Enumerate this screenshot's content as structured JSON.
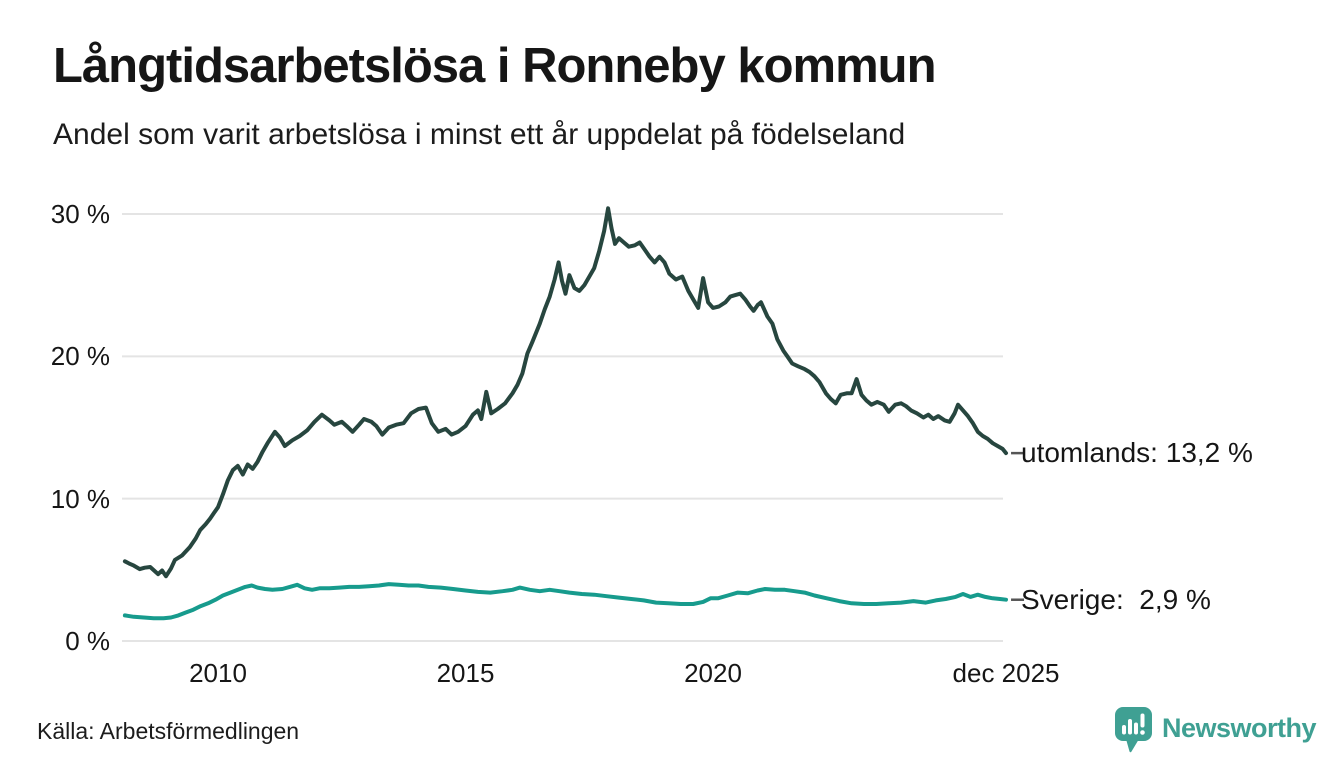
{
  "header": {
    "title": "Långtidsarbetslösa i Ronneby kommun",
    "subtitle": "Andel som varit arbetslösa i minst ett år uppdelat på födelseland"
  },
  "chart_data": {
    "type": "line",
    "title": "Långtidsarbetslösa i Ronneby kommun",
    "subtitle": "Andel som varit arbetslösa i minst ett år uppdelat på födelseland",
    "xlabel": "",
    "ylabel": "",
    "unit": "%",
    "grid": true,
    "legend_position": "right-end-labels",
    "x_range": [
      2008.1,
      2025.95
    ],
    "ylim": [
      0,
      31
    ],
    "y_ticks": [
      {
        "label": "0 %",
        "value": 0
      },
      {
        "label": "10 %",
        "value": 10
      },
      {
        "label": "20 %",
        "value": 20
      },
      {
        "label": "30 %",
        "value": 30
      }
    ],
    "x_ticks": [
      {
        "label": "2010",
        "value": 2010
      },
      {
        "label": "2015",
        "value": 2015
      },
      {
        "label": "2020",
        "value": 2020
      },
      {
        "label": "dec 2025",
        "value": 2025.92
      }
    ],
    "series": [
      {
        "name": "utomlands",
        "end_label": "utomlands: 13,2 %",
        "last_value": "13,2 %",
        "color": "#27463f",
        "points": [
          [
            2008.12,
            5.6
          ],
          [
            2008.2,
            5.45
          ],
          [
            2008.3,
            5.3
          ],
          [
            2008.42,
            5.05
          ],
          [
            2008.52,
            5.15
          ],
          [
            2008.63,
            5.2
          ],
          [
            2008.79,
            4.7
          ],
          [
            2008.87,
            4.95
          ],
          [
            2008.95,
            4.55
          ],
          [
            2009.05,
            5.1
          ],
          [
            2009.13,
            5.7
          ],
          [
            2009.27,
            6.0
          ],
          [
            2009.43,
            6.6
          ],
          [
            2009.55,
            7.2
          ],
          [
            2009.64,
            7.8
          ],
          [
            2009.75,
            8.2
          ],
          [
            2009.84,
            8.6
          ],
          [
            2009.92,
            9.0
          ],
          [
            2010.0,
            9.4
          ],
          [
            2010.1,
            10.3
          ],
          [
            2010.2,
            11.3
          ],
          [
            2010.3,
            12.0
          ],
          [
            2010.4,
            12.3
          ],
          [
            2010.5,
            11.7
          ],
          [
            2010.6,
            12.4
          ],
          [
            2010.7,
            12.1
          ],
          [
            2010.8,
            12.6
          ],
          [
            2010.9,
            13.3
          ],
          [
            2011.0,
            13.9
          ],
          [
            2011.15,
            14.7
          ],
          [
            2011.25,
            14.3
          ],
          [
            2011.35,
            13.7
          ],
          [
            2011.5,
            14.1
          ],
          [
            2011.65,
            14.4
          ],
          [
            2011.8,
            14.8
          ],
          [
            2011.95,
            15.4
          ],
          [
            2012.1,
            15.9
          ],
          [
            2012.25,
            15.5
          ],
          [
            2012.35,
            15.2
          ],
          [
            2012.5,
            15.4
          ],
          [
            2012.6,
            15.1
          ],
          [
            2012.72,
            14.7
          ],
          [
            2012.85,
            15.2
          ],
          [
            2012.95,
            15.6
          ],
          [
            2013.1,
            15.4
          ],
          [
            2013.2,
            15.1
          ],
          [
            2013.32,
            14.5
          ],
          [
            2013.45,
            15.0
          ],
          [
            2013.6,
            15.2
          ],
          [
            2013.75,
            15.3
          ],
          [
            2013.9,
            16.0
          ],
          [
            2014.05,
            16.3
          ],
          [
            2014.2,
            16.4
          ],
          [
            2014.32,
            15.3
          ],
          [
            2014.45,
            14.7
          ],
          [
            2014.6,
            14.9
          ],
          [
            2014.72,
            14.5
          ],
          [
            2014.85,
            14.7
          ],
          [
            2015.0,
            15.1
          ],
          [
            2015.15,
            15.9
          ],
          [
            2015.25,
            16.2
          ],
          [
            2015.32,
            15.6
          ],
          [
            2015.42,
            17.5
          ],
          [
            2015.52,
            16.0
          ],
          [
            2015.65,
            16.3
          ],
          [
            2015.8,
            16.7
          ],
          [
            2015.95,
            17.4
          ],
          [
            2016.05,
            18.0
          ],
          [
            2016.15,
            18.8
          ],
          [
            2016.25,
            20.2
          ],
          [
            2016.35,
            21.0
          ],
          [
            2016.5,
            22.3
          ],
          [
            2016.6,
            23.3
          ],
          [
            2016.7,
            24.2
          ],
          [
            2016.8,
            25.4
          ],
          [
            2016.88,
            26.6
          ],
          [
            2016.95,
            25.3
          ],
          [
            2017.02,
            24.4
          ],
          [
            2017.1,
            25.7
          ],
          [
            2017.2,
            24.8
          ],
          [
            2017.3,
            24.6
          ],
          [
            2017.4,
            25.0
          ],
          [
            2017.5,
            25.6
          ],
          [
            2017.6,
            26.2
          ],
          [
            2017.7,
            27.4
          ],
          [
            2017.8,
            28.8
          ],
          [
            2017.88,
            30.4
          ],
          [
            2017.95,
            29.0
          ],
          [
            2018.02,
            27.9
          ],
          [
            2018.1,
            28.3
          ],
          [
            2018.2,
            28.0
          ],
          [
            2018.3,
            27.7
          ],
          [
            2018.42,
            27.8
          ],
          [
            2018.52,
            28.0
          ],
          [
            2018.62,
            27.5
          ],
          [
            2018.72,
            27.0
          ],
          [
            2018.82,
            26.6
          ],
          [
            2018.92,
            27.0
          ],
          [
            2019.02,
            26.6
          ],
          [
            2019.12,
            25.8
          ],
          [
            2019.25,
            25.4
          ],
          [
            2019.38,
            25.6
          ],
          [
            2019.5,
            24.6
          ],
          [
            2019.6,
            24.0
          ],
          [
            2019.7,
            23.4
          ],
          [
            2019.8,
            25.5
          ],
          [
            2019.9,
            23.8
          ],
          [
            2020.0,
            23.4
          ],
          [
            2020.12,
            23.5
          ],
          [
            2020.25,
            23.8
          ],
          [
            2020.35,
            24.2
          ],
          [
            2020.45,
            24.3
          ],
          [
            2020.55,
            24.4
          ],
          [
            2020.65,
            24.0
          ],
          [
            2020.75,
            23.5
          ],
          [
            2020.82,
            23.2
          ],
          [
            2020.9,
            23.6
          ],
          [
            2020.97,
            23.8
          ],
          [
            2021.1,
            22.8
          ],
          [
            2021.2,
            22.3
          ],
          [
            2021.3,
            21.2
          ],
          [
            2021.42,
            20.4
          ],
          [
            2021.5,
            20.0
          ],
          [
            2021.6,
            19.5
          ],
          [
            2021.72,
            19.3
          ],
          [
            2021.85,
            19.1
          ],
          [
            2021.95,
            18.9
          ],
          [
            2022.05,
            18.6
          ],
          [
            2022.15,
            18.2
          ],
          [
            2022.28,
            17.4
          ],
          [
            2022.38,
            17.0
          ],
          [
            2022.48,
            16.7
          ],
          [
            2022.58,
            17.3
          ],
          [
            2022.7,
            17.4
          ],
          [
            2022.8,
            17.4
          ],
          [
            2022.9,
            18.4
          ],
          [
            2023.0,
            17.3
          ],
          [
            2023.1,
            16.9
          ],
          [
            2023.2,
            16.6
          ],
          [
            2023.32,
            16.8
          ],
          [
            2023.45,
            16.6
          ],
          [
            2023.55,
            16.1
          ],
          [
            2023.68,
            16.6
          ],
          [
            2023.8,
            16.7
          ],
          [
            2023.9,
            16.5
          ],
          [
            2024.0,
            16.2
          ],
          [
            2024.12,
            16.0
          ],
          [
            2024.25,
            15.7
          ],
          [
            2024.35,
            15.9
          ],
          [
            2024.45,
            15.6
          ],
          [
            2024.55,
            15.8
          ],
          [
            2024.68,
            15.5
          ],
          [
            2024.78,
            15.4
          ],
          [
            2024.88,
            16.0
          ],
          [
            2024.95,
            16.6
          ],
          [
            2025.05,
            16.2
          ],
          [
            2025.15,
            15.8
          ],
          [
            2025.25,
            15.3
          ],
          [
            2025.35,
            14.7
          ],
          [
            2025.45,
            14.4
          ],
          [
            2025.55,
            14.2
          ],
          [
            2025.65,
            13.9
          ],
          [
            2025.75,
            13.7
          ],
          [
            2025.85,
            13.5
          ],
          [
            2025.92,
            13.2
          ]
        ]
      },
      {
        "name": "Sverige",
        "end_label": "Sverige:  2,9 %",
        "last_value": "2,9 %",
        "color": "#179b8d",
        "points": [
          [
            2008.12,
            1.8
          ],
          [
            2008.3,
            1.7
          ],
          [
            2008.5,
            1.65
          ],
          [
            2008.7,
            1.6
          ],
          [
            2008.9,
            1.6
          ],
          [
            2009.05,
            1.65
          ],
          [
            2009.2,
            1.8
          ],
          [
            2009.35,
            2.0
          ],
          [
            2009.5,
            2.2
          ],
          [
            2009.65,
            2.45
          ],
          [
            2009.8,
            2.65
          ],
          [
            2009.95,
            2.9
          ],
          [
            2010.1,
            3.2
          ],
          [
            2010.25,
            3.4
          ],
          [
            2010.4,
            3.6
          ],
          [
            2010.55,
            3.8
          ],
          [
            2010.68,
            3.9
          ],
          [
            2010.8,
            3.75
          ],
          [
            2010.95,
            3.65
          ],
          [
            2011.1,
            3.6
          ],
          [
            2011.3,
            3.65
          ],
          [
            2011.45,
            3.8
          ],
          [
            2011.6,
            3.95
          ],
          [
            2011.75,
            3.7
          ],
          [
            2011.9,
            3.6
          ],
          [
            2012.05,
            3.7
          ],
          [
            2012.25,
            3.7
          ],
          [
            2012.45,
            3.75
          ],
          [
            2012.65,
            3.8
          ],
          [
            2012.85,
            3.8
          ],
          [
            2013.05,
            3.85
          ],
          [
            2013.25,
            3.9
          ],
          [
            2013.45,
            4.0
          ],
          [
            2013.65,
            3.95
          ],
          [
            2013.85,
            3.9
          ],
          [
            2014.05,
            3.9
          ],
          [
            2014.25,
            3.8
          ],
          [
            2014.5,
            3.75
          ],
          [
            2014.75,
            3.65
          ],
          [
            2015.0,
            3.55
          ],
          [
            2015.25,
            3.45
          ],
          [
            2015.5,
            3.4
          ],
          [
            2015.75,
            3.5
          ],
          [
            2015.95,
            3.6
          ],
          [
            2016.1,
            3.75
          ],
          [
            2016.3,
            3.6
          ],
          [
            2016.5,
            3.5
          ],
          [
            2016.7,
            3.6
          ],
          [
            2016.9,
            3.5
          ],
          [
            2017.1,
            3.4
          ],
          [
            2017.35,
            3.3
          ],
          [
            2017.6,
            3.25
          ],
          [
            2017.85,
            3.15
          ],
          [
            2018.1,
            3.05
          ],
          [
            2018.35,
            2.95
          ],
          [
            2018.6,
            2.85
          ],
          [
            2018.85,
            2.7
          ],
          [
            2019.1,
            2.65
          ],
          [
            2019.35,
            2.6
          ],
          [
            2019.6,
            2.6
          ],
          [
            2019.8,
            2.75
          ],
          [
            2019.95,
            3.0
          ],
          [
            2020.1,
            3.0
          ],
          [
            2020.3,
            3.2
          ],
          [
            2020.5,
            3.4
          ],
          [
            2020.7,
            3.35
          ],
          [
            2020.9,
            3.55
          ],
          [
            2021.05,
            3.65
          ],
          [
            2021.25,
            3.6
          ],
          [
            2021.45,
            3.6
          ],
          [
            2021.65,
            3.5
          ],
          [
            2021.85,
            3.4
          ],
          [
            2022.05,
            3.2
          ],
          [
            2022.3,
            3.0
          ],
          [
            2022.55,
            2.8
          ],
          [
            2022.8,
            2.65
          ],
          [
            2023.05,
            2.6
          ],
          [
            2023.3,
            2.6
          ],
          [
            2023.55,
            2.65
          ],
          [
            2023.8,
            2.7
          ],
          [
            2024.05,
            2.8
          ],
          [
            2024.3,
            2.7
          ],
          [
            2024.5,
            2.85
          ],
          [
            2024.7,
            2.95
          ],
          [
            2024.9,
            3.1
          ],
          [
            2025.05,
            3.3
          ],
          [
            2025.2,
            3.1
          ],
          [
            2025.35,
            3.25
          ],
          [
            2025.5,
            3.1
          ],
          [
            2025.65,
            3.0
          ],
          [
            2025.8,
            2.95
          ],
          [
            2025.92,
            2.9
          ]
        ]
      }
    ]
  },
  "footer": {
    "source": "Källa: Arbetsförmedlingen",
    "logo_text": "Newsworthy"
  },
  "colors": {
    "series_utomlands": "#27463f",
    "series_sverige": "#179b8d",
    "gridline": "#e4e4e4",
    "connector_dash": "#555555",
    "logo_teal": "#3fa093",
    "text": "#161616"
  }
}
